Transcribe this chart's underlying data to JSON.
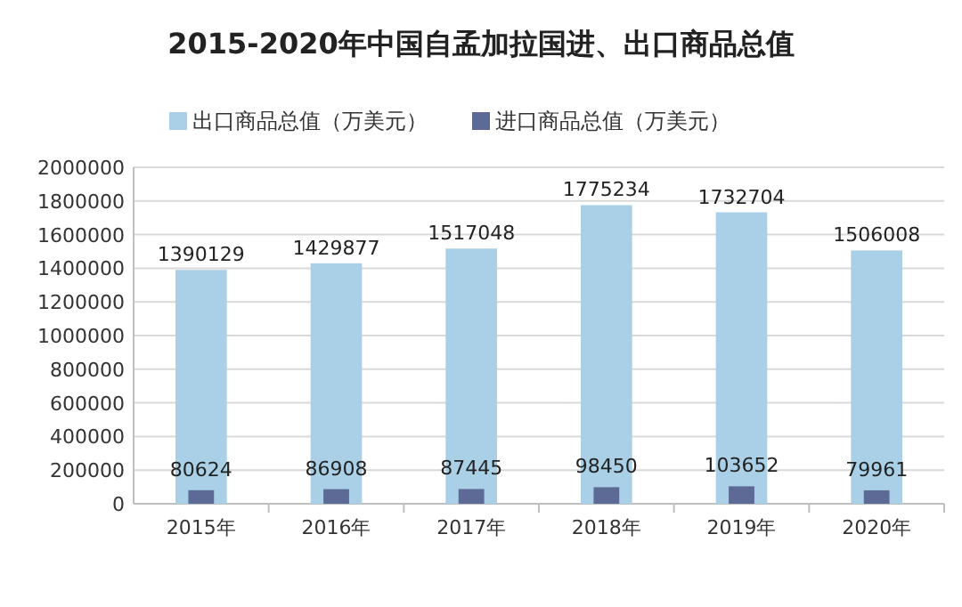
{
  "chart_data": {
    "type": "bar",
    "title": "2015-2020年中国自孟加拉国进、出口商品总值",
    "categories": [
      "2015年",
      "2016年",
      "2017年",
      "2018年",
      "2019年",
      "2020年"
    ],
    "series": [
      {
        "name": "出口商品总值（万美元）",
        "color": "#a9d0e6",
        "values": [
          1390129,
          1429877,
          1517048,
          1775234,
          1732704,
          1506008
        ]
      },
      {
        "name": "进口商品总值（万美元）",
        "color": "#5e6a96",
        "values": [
          80624,
          86908,
          87445,
          98450,
          103652,
          79961
        ]
      }
    ],
    "ylim": [
      0,
      2000000
    ],
    "yticks": [
      0,
      200000,
      400000,
      600000,
      800000,
      1000000,
      1200000,
      1400000,
      1600000,
      1800000,
      2000000
    ],
    "grid": "y",
    "legend": "top",
    "data_labels": true
  }
}
